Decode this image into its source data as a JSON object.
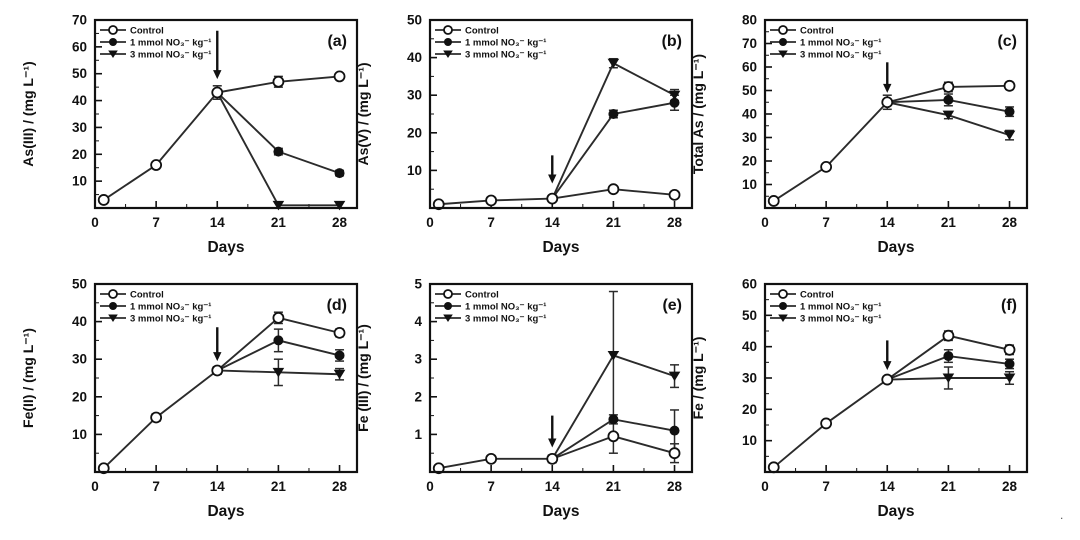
{
  "figure": {
    "legend_labels": [
      "Control",
      "1 mmol NO₃⁻ kg⁻¹",
      "3 mmol NO₃⁻ kg⁻¹"
    ],
    "xlabel": "Days",
    "line_color": "#2b2b2b",
    "marker_stroke": "#111111"
  },
  "stray_mark": ".",
  "chart_data": [
    {
      "type": "line",
      "panel_label": "(a)",
      "ylabel": "As(III) / (mg L⁻¹)",
      "xlabel": "Days",
      "xlim": [
        0,
        30
      ],
      "ylim": [
        0,
        70
      ],
      "xticks": [
        0,
        7,
        14,
        21,
        28
      ],
      "yticks": [
        10,
        20,
        30,
        40,
        50,
        60,
        70
      ],
      "arrow": {
        "x": 14,
        "tip": 48,
        "tail": 66
      },
      "legend": [
        "Control",
        "1 mmol NO₃⁻ kg⁻¹",
        "3 mmol NO₃⁻ kg⁻¹"
      ],
      "series": [
        {
          "name": "Control",
          "marker": "open-circle",
          "x": [
            1,
            7,
            14,
            21,
            28
          ],
          "y": [
            3,
            16,
            43,
            47,
            49
          ],
          "err": [
            0,
            0,
            2.5,
            2,
            1
          ]
        },
        {
          "name": "1 mmol NO₃⁻ kg⁻¹",
          "marker": "filled-circle",
          "first_unmarked": true,
          "x": [
            14,
            21,
            28
          ],
          "y": [
            43,
            21,
            13
          ],
          "err": [
            0,
            1.2,
            1
          ]
        },
        {
          "name": "3 mmol NO₃⁻ kg⁻¹",
          "marker": "filled-triangle-down",
          "first_unmarked": true,
          "x": [
            14,
            21,
            28
          ],
          "y": [
            43,
            1,
            1
          ],
          "err": [
            0,
            0,
            0
          ]
        }
      ]
    },
    {
      "type": "line",
      "panel_label": "(b)",
      "ylabel": "As(V) / (mg L⁻¹)",
      "xlabel": "Days",
      "xlim": [
        0,
        30
      ],
      "ylim": [
        0,
        50
      ],
      "xticks": [
        0,
        7,
        14,
        21,
        28
      ],
      "yticks": [
        10,
        20,
        30,
        40,
        50
      ],
      "arrow": {
        "x": 14,
        "tip": 6.5,
        "tail": 14
      },
      "legend": [
        "Control",
        "1 mmol NO₃⁻ kg⁻¹",
        "3 mmol NO₃⁻ kg⁻¹"
      ],
      "series": [
        {
          "name": "Control",
          "marker": "open-circle",
          "x": [
            1,
            7,
            14,
            21,
            28
          ],
          "y": [
            1,
            2,
            2.5,
            5,
            3.5
          ],
          "err": [
            0,
            0,
            0.5,
            0.5,
            0.5
          ]
        },
        {
          "name": "1 mmol NO₃⁻ kg⁻¹",
          "marker": "filled-circle",
          "first_unmarked": true,
          "x": [
            14,
            21,
            28
          ],
          "y": [
            2.5,
            25,
            28
          ],
          "err": [
            0,
            1,
            2
          ]
        },
        {
          "name": "3 mmol NO₃⁻ kg⁻¹",
          "marker": "filled-triangle-down",
          "first_unmarked": true,
          "x": [
            14,
            21,
            28
          ],
          "y": [
            2.5,
            38.5,
            30
          ],
          "err": [
            0,
            1.2,
            1.5
          ]
        }
      ]
    },
    {
      "type": "line",
      "panel_label": "(c)",
      "ylabel": "Total As / (mg L⁻¹)",
      "xlabel": "Days",
      "xlim": [
        0,
        30
      ],
      "ylim": [
        0,
        80
      ],
      "xticks": [
        0,
        7,
        14,
        21,
        28
      ],
      "yticks": [
        10,
        20,
        30,
        40,
        50,
        60,
        70,
        80
      ],
      "arrow": {
        "x": 14,
        "tip": 49,
        "tail": 62
      },
      "legend": [
        "Control",
        "1 mmol NO₃⁻ kg⁻¹",
        "3 mmol NO₃⁻ kg⁻¹"
      ],
      "series": [
        {
          "name": "Control",
          "marker": "open-circle",
          "x": [
            1,
            7,
            14,
            21,
            28
          ],
          "y": [
            3,
            17.5,
            45,
            51.5,
            52
          ],
          "err": [
            0,
            0,
            3,
            2,
            1.5
          ]
        },
        {
          "name": "1 mmol NO₃⁻ kg⁻¹",
          "marker": "filled-circle",
          "first_unmarked": true,
          "x": [
            14,
            21,
            28
          ],
          "y": [
            45,
            46,
            41
          ],
          "err": [
            0,
            2.5,
            2
          ]
        },
        {
          "name": "3 mmol NO₃⁻ kg⁻¹",
          "marker": "filled-triangle-down",
          "first_unmarked": true,
          "x": [
            14,
            21,
            28
          ],
          "y": [
            45,
            39.5,
            31
          ],
          "err": [
            0,
            1.5,
            2
          ]
        }
      ]
    },
    {
      "type": "line",
      "panel_label": "(d)",
      "ylabel": "Fe(II) / (mg L⁻¹)",
      "xlabel": "Days",
      "xlim": [
        0,
        30
      ],
      "ylim": [
        0,
        50
      ],
      "xticks": [
        0,
        7,
        14,
        21,
        28
      ],
      "yticks": [
        10,
        20,
        30,
        40,
        50
      ],
      "arrow": {
        "x": 14,
        "tip": 29.5,
        "tail": 38.5
      },
      "legend": [
        "Control",
        "1 mmol NO₃⁻ kg⁻¹",
        "3 mmol NO₃⁻ kg⁻¹"
      ],
      "series": [
        {
          "name": "Control",
          "marker": "open-circle",
          "x": [
            1,
            7,
            14,
            21,
            28
          ],
          "y": [
            1,
            14.5,
            27,
            41,
            37
          ],
          "err": [
            0,
            1,
            1,
            1.5,
            1
          ]
        },
        {
          "name": "1 mmol NO₃⁻ kg⁻¹",
          "marker": "filled-circle",
          "first_unmarked": true,
          "x": [
            14,
            21,
            28
          ],
          "y": [
            27,
            35,
            31
          ],
          "err": [
            0,
            3,
            1.5
          ]
        },
        {
          "name": "3 mmol NO₃⁻ kg⁻¹",
          "marker": "filled-triangle-down",
          "first_unmarked": true,
          "x": [
            14,
            21,
            28
          ],
          "y": [
            27,
            26.5,
            26
          ],
          "err": [
            0,
            3.5,
            1.5
          ]
        }
      ]
    },
    {
      "type": "line",
      "panel_label": "(e)",
      "ylabel": "Fe (III) / (mg L⁻¹)",
      "xlabel": "Days",
      "xlim": [
        0,
        30
      ],
      "ylim": [
        0,
        5
      ],
      "xticks": [
        0,
        7,
        14,
        21,
        28
      ],
      "yticks": [
        1,
        2,
        3,
        4,
        5
      ],
      "arrow": {
        "x": 14,
        "tip": 0.65,
        "tail": 1.5
      },
      "legend": [
        "Control",
        "1 mmol NO₃⁻ kg⁻¹",
        "3 mmol NO₃⁻ kg⁻¹"
      ],
      "series": [
        {
          "name": "Control",
          "marker": "open-circle",
          "x": [
            1,
            7,
            14,
            21,
            28
          ],
          "y": [
            0.1,
            0.35,
            0.35,
            0.95,
            0.5
          ],
          "err": [
            0,
            0.05,
            0.1,
            0.45,
            0.25
          ]
        },
        {
          "name": "1 mmol NO₃⁻ kg⁻¹",
          "marker": "filled-circle",
          "first_unmarked": true,
          "x": [
            14,
            21,
            28
          ],
          "y": [
            0.35,
            1.4,
            1.1
          ],
          "err": [
            0,
            0.12,
            0.55
          ]
        },
        {
          "name": "3 mmol NO₃⁻ kg⁻¹",
          "marker": "filled-triangle-down",
          "first_unmarked": true,
          "x": [
            14,
            21,
            28
          ],
          "y": [
            0.35,
            3.1,
            2.55
          ],
          "err": [
            0,
            1.7,
            0.3
          ]
        }
      ]
    },
    {
      "type": "line",
      "panel_label": "(f)",
      "ylabel": "Fe / (mg L⁻¹)",
      "xlabel": "Days",
      "xlim": [
        0,
        30
      ],
      "ylim": [
        0,
        60
      ],
      "xticks": [
        0,
        7,
        14,
        21,
        28
      ],
      "yticks": [
        10,
        20,
        30,
        40,
        50,
        60
      ],
      "arrow": {
        "x": 14,
        "tip": 32.5,
        "tail": 42
      },
      "legend": [
        "Control",
        "1 mmol NO₃⁻ kg⁻¹",
        "3 mmol NO₃⁻ kg⁻¹"
      ],
      "series": [
        {
          "name": "Control",
          "marker": "open-circle",
          "x": [
            1,
            7,
            14,
            21,
            28
          ],
          "y": [
            1.5,
            15.5,
            29.5,
            43.5,
            39
          ],
          "err": [
            0,
            0,
            1,
            1.5,
            1.5
          ]
        },
        {
          "name": "1 mmol NO₃⁻ kg⁻¹",
          "marker": "filled-circle",
          "first_unmarked": true,
          "x": [
            14,
            21,
            28
          ],
          "y": [
            29.5,
            37,
            34.5
          ],
          "err": [
            0,
            2,
            1.5
          ]
        },
        {
          "name": "3 mmol NO₃⁻ kg⁻¹",
          "marker": "filled-triangle-down",
          "first_unmarked": true,
          "x": [
            14,
            21,
            28
          ],
          "y": [
            29.5,
            30,
            30
          ],
          "err": [
            0,
            3.5,
            2
          ]
        }
      ]
    }
  ]
}
